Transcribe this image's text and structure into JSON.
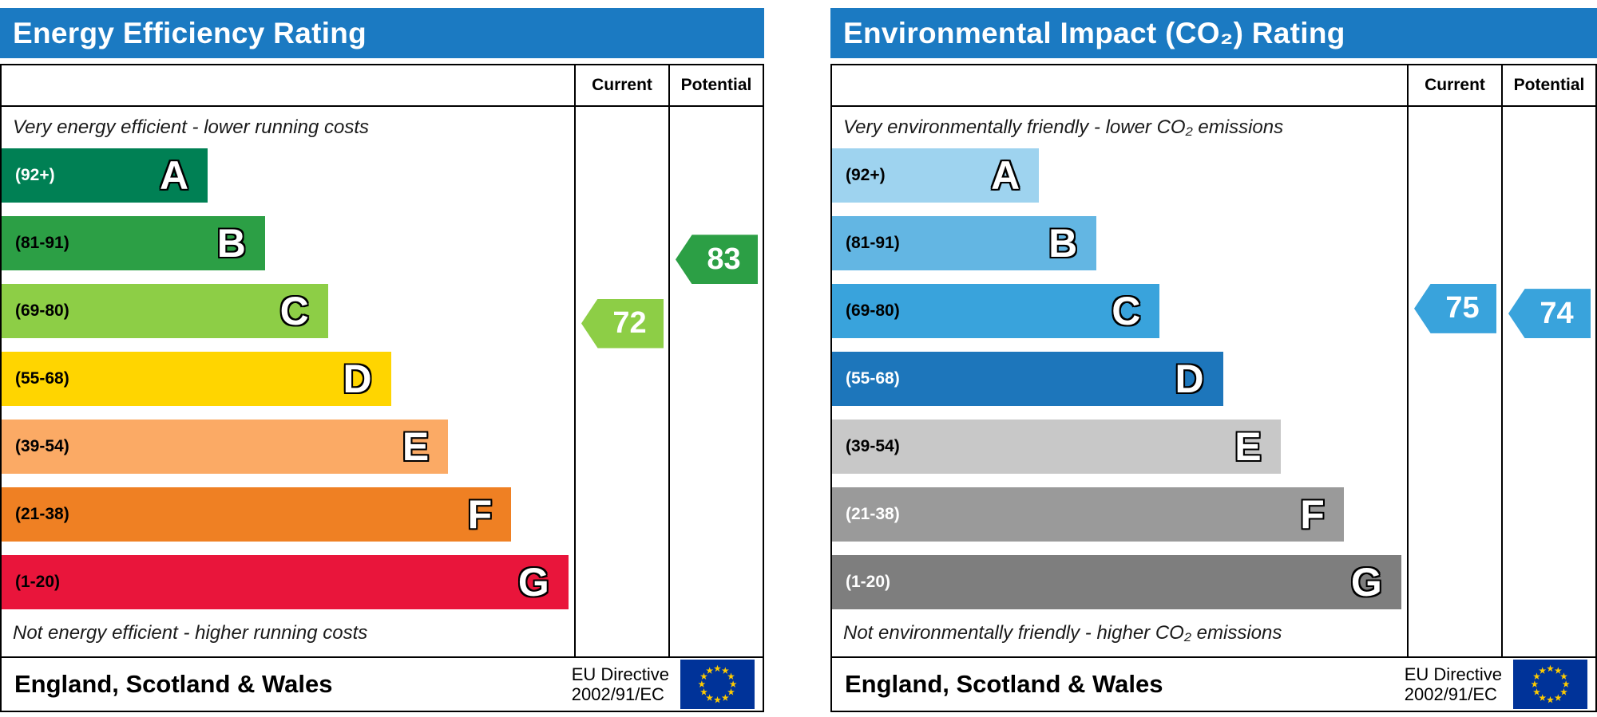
{
  "theme": {
    "header_bg": "#1b7ac2",
    "header_text": "#ffffff",
    "border": "#000000",
    "eu_flag_blue": "#003399",
    "eu_flag_star": "#ffcc00"
  },
  "chart_data": [
    {
      "type": "epc-band-chart",
      "title": "Energy Efficiency Rating",
      "columns": {
        "current": "Current",
        "potential": "Potential"
      },
      "top_note": "Very energy efficient - lower running costs",
      "bottom_note": "Not energy efficient - higher running costs",
      "bands": [
        {
          "label": "A",
          "range": "(92+)",
          "min": 92,
          "max": 100,
          "color": "#008054",
          "text_color": "#ffffff",
          "width_pct": 36
        },
        {
          "label": "B",
          "range": "(81-91)",
          "min": 81,
          "max": 91,
          "color": "#2c9f45",
          "text_color": "#000000",
          "width_pct": 46
        },
        {
          "label": "C",
          "range": "(69-80)",
          "min": 69,
          "max": 80,
          "color": "#8dce46",
          "text_color": "#000000",
          "width_pct": 57
        },
        {
          "label": "D",
          "range": "(55-68)",
          "min": 55,
          "max": 68,
          "color": "#ffd500",
          "text_color": "#000000",
          "width_pct": 68
        },
        {
          "label": "E",
          "range": "(39-54)",
          "min": 39,
          "max": 54,
          "color": "#fbaa65",
          "text_color": "#000000",
          "width_pct": 78
        },
        {
          "label": "F",
          "range": "(21-38)",
          "min": 21,
          "max": 38,
          "color": "#ef8023",
          "text_color": "#000000",
          "width_pct": 89
        },
        {
          "label": "G",
          "range": "(1-20)",
          "min": 1,
          "max": 20,
          "color": "#e9153b",
          "text_color": "#000000",
          "width_pct": 99
        }
      ],
      "current": {
        "label": "72",
        "value": 72,
        "color": "#8dce46"
      },
      "potential": {
        "label": "83",
        "value": 83,
        "color": "#2c9f45"
      },
      "footer": {
        "region": "England, Scotland & Wales",
        "directive_line1": "EU Directive",
        "directive_line2": "2002/91/EC"
      }
    },
    {
      "type": "epc-band-chart",
      "title": "Environmental Impact (CO₂) Rating",
      "columns": {
        "current": "Current",
        "potential": "Potential"
      },
      "top_note": "Very environmentally friendly - lower CO₂ emissions",
      "bottom_note": "Not environmentally friendly - higher CO₂ emissions",
      "bands": [
        {
          "label": "A",
          "range": "(92+)",
          "min": 92,
          "max": 100,
          "color": "#9ed3ef",
          "text_color": "#000000",
          "width_pct": 36
        },
        {
          "label": "B",
          "range": "(81-91)",
          "min": 81,
          "max": 91,
          "color": "#63b6e3",
          "text_color": "#000000",
          "width_pct": 46
        },
        {
          "label": "C",
          "range": "(69-80)",
          "min": 69,
          "max": 80,
          "color": "#39a3dc",
          "text_color": "#000000",
          "width_pct": 57
        },
        {
          "label": "D",
          "range": "(55-68)",
          "min": 55,
          "max": 68,
          "color": "#1d76bb",
          "text_color": "#ffffff",
          "width_pct": 68
        },
        {
          "label": "E",
          "range": "(39-54)",
          "min": 39,
          "max": 54,
          "color": "#c8c8c8",
          "text_color": "#000000",
          "width_pct": 78
        },
        {
          "label": "F",
          "range": "(21-38)",
          "min": 21,
          "max": 38,
          "color": "#9a9a9a",
          "text_color": "#ffffff",
          "width_pct": 89
        },
        {
          "label": "G",
          "range": "(1-20)",
          "min": 1,
          "max": 20,
          "color": "#7e7e7e",
          "text_color": "#ffffff",
          "width_pct": 99
        }
      ],
      "current": {
        "label": "75",
        "value": 75,
        "color": "#39a3dc"
      },
      "potential": {
        "label": "74",
        "value": 74,
        "color": "#39a3dc"
      },
      "footer": {
        "region": "England, Scotland & Wales",
        "directive_line1": "EU Directive",
        "directive_line2": "2002/91/EC"
      }
    }
  ]
}
